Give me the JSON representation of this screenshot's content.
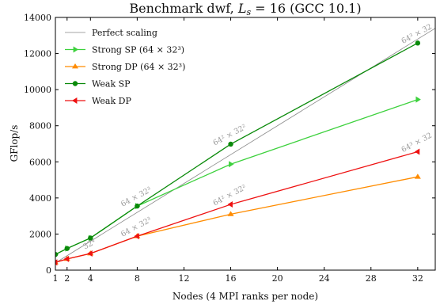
{
  "chart_data": {
    "type": "line",
    "title_main": "Benchmark dwf, ",
    "title_var": "L",
    "title_sub": "s",
    "title_rest": " = 16 (GCC 10.1)",
    "xlabel": "Nodes (4 MPI ranks per node)",
    "ylabel": "GFlop/s",
    "xlim": [
      1,
      33.5
    ],
    "ylim": [
      0,
      14000
    ],
    "xticks": [
      1,
      2,
      4,
      8,
      12,
      16,
      20,
      24,
      28,
      32
    ],
    "yticks": [
      0,
      2000,
      4000,
      6000,
      8000,
      10000,
      12000,
      14000
    ],
    "grid": false,
    "legend_position": "top-left",
    "series": [
      {
        "name": "Perfect scaling",
        "color": "#888888",
        "marker": "none",
        "x": [
          1,
          39
        ],
        "y": [
          400,
          15600
        ]
      },
      {
        "name": "Strong SP (64 × 32³)",
        "color": "#3dd13d",
        "marker": "triangle-right",
        "x": [
          1,
          2,
          4,
          8,
          16,
          32
        ],
        "y": [
          870,
          1200,
          1780,
          3550,
          5870,
          9450
        ]
      },
      {
        "name": "Strong DP (64 × 32³)",
        "color": "#ff8c00",
        "marker": "triangle-up",
        "x": [
          1,
          2,
          4,
          8,
          16,
          32
        ],
        "y": [
          430,
          620,
          920,
          1880,
          3100,
          5170
        ]
      },
      {
        "name": "Weak SP",
        "color": "#0a8a0a",
        "marker": "circle",
        "x": [
          1,
          2,
          4,
          8,
          16,
          32
        ],
        "y": [
          870,
          1200,
          1780,
          3550,
          6980,
          12580
        ]
      },
      {
        "name": "Weak DP",
        "color": "#ee1111",
        "marker": "triangle-left",
        "x": [
          1,
          2,
          4,
          8,
          16,
          32
        ],
        "y": [
          430,
          620,
          920,
          1880,
          3640,
          6560
        ]
      }
    ],
    "annotations": [
      {
        "text": "64 × 32³",
        "x": 8,
        "y": 3550
      },
      {
        "text": "64² × 32²",
        "x": 16,
        "y": 6980
      },
      {
        "text": "64³ × 32",
        "x": 32,
        "y": 12580
      },
      {
        "text": "32⁴",
        "x": 4,
        "y": 920
      },
      {
        "text": "64 × 32³",
        "x": 8,
        "y": 1880
      },
      {
        "text": "64² × 32²",
        "x": 16,
        "y": 3640
      },
      {
        "text": "64³ × 32",
        "x": 32,
        "y": 6560
      }
    ]
  }
}
